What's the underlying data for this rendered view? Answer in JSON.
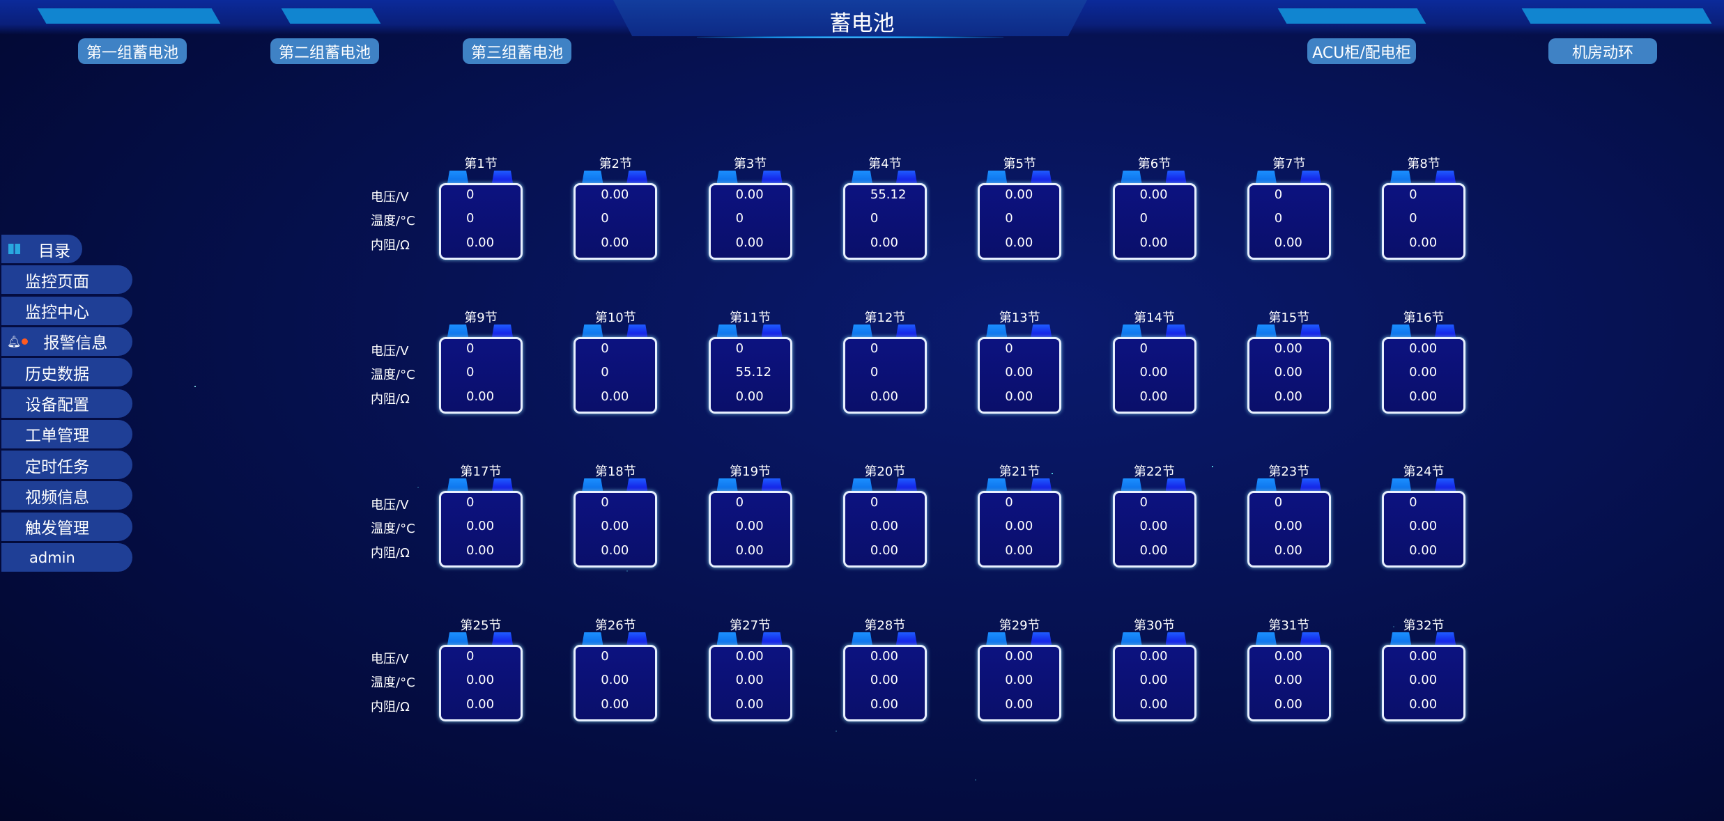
{
  "header": {
    "title": "蓄电池"
  },
  "nav": [
    {
      "label": "第一组蓄电池"
    },
    {
      "label": "第二组蓄电池"
    },
    {
      "label": "第三组蓄电池"
    },
    {
      "label": "ACU柜/配电柜"
    },
    {
      "label": "机房动环"
    }
  ],
  "sidebar": {
    "items": [
      {
        "label": "目录",
        "icon": "grid-icon"
      },
      {
        "label": "监控页面"
      },
      {
        "label": "监控中心"
      },
      {
        "label": "报警信息",
        "icon": "bell-icon",
        "badge_color": "#ff5a1f"
      },
      {
        "label": "历史数据"
      },
      {
        "label": "设备配置"
      },
      {
        "label": "工单管理"
      },
      {
        "label": "定时任务"
      },
      {
        "label": "视频信息"
      },
      {
        "label": "触发管理"
      },
      {
        "label": "admin"
      }
    ]
  },
  "labels": {
    "voltage": "电压/V",
    "temperature": "温度/°C",
    "resistance": "内阻/Ω"
  },
  "cells": [
    {
      "name": "第1节",
      "v": "0",
      "t": "0",
      "r": "0.00"
    },
    {
      "name": "第2节",
      "v": "0.00",
      "t": "0",
      "r": "0.00"
    },
    {
      "name": "第3节",
      "v": "0.00",
      "t": "0",
      "r": "0.00"
    },
    {
      "name": "第4节",
      "v": "55.12",
      "t": "0",
      "r": "0.00"
    },
    {
      "name": "第5节",
      "v": "0.00",
      "t": "0",
      "r": "0.00"
    },
    {
      "name": "第6节",
      "v": "0.00",
      "t": "0",
      "r": "0.00"
    },
    {
      "name": "第7节",
      "v": "0",
      "t": "0",
      "r": "0.00"
    },
    {
      "name": "第8节",
      "v": "0",
      "t": "0",
      "r": "0.00"
    },
    {
      "name": "第9节",
      "v": "0",
      "t": "0",
      "r": "0.00"
    },
    {
      "name": "第10节",
      "v": "0",
      "t": "0",
      "r": "0.00"
    },
    {
      "name": "第11节",
      "v": "0",
      "t": "55.12",
      "r": "0.00"
    },
    {
      "name": "第12节",
      "v": "0",
      "t": "0",
      "r": "0.00"
    },
    {
      "name": "第13节",
      "v": "0",
      "t": "0.00",
      "r": "0.00"
    },
    {
      "name": "第14节",
      "v": "0",
      "t": "0.00",
      "r": "0.00"
    },
    {
      "name": "第15节",
      "v": "0.00",
      "t": "0.00",
      "r": "0.00"
    },
    {
      "name": "第16节",
      "v": "0.00",
      "t": "0.00",
      "r": "0.00"
    },
    {
      "name": "第17节",
      "v": "0",
      "t": "0.00",
      "r": "0.00"
    },
    {
      "name": "第18节",
      "v": "0",
      "t": "0.00",
      "r": "0.00"
    },
    {
      "name": "第19节",
      "v": "0",
      "t": "0.00",
      "r": "0.00"
    },
    {
      "name": "第20节",
      "v": "0",
      "t": "0.00",
      "r": "0.00"
    },
    {
      "name": "第21节",
      "v": "0",
      "t": "0.00",
      "r": "0.00"
    },
    {
      "name": "第22节",
      "v": "0",
      "t": "0.00",
      "r": "0.00"
    },
    {
      "name": "第23节",
      "v": "0",
      "t": "0.00",
      "r": "0.00"
    },
    {
      "name": "第24节",
      "v": "0",
      "t": "0.00",
      "r": "0.00"
    },
    {
      "name": "第25节",
      "v": "0",
      "t": "0.00",
      "r": "0.00"
    },
    {
      "name": "第26节",
      "v": "0",
      "t": "0.00",
      "r": "0.00"
    },
    {
      "name": "第27节",
      "v": "0.00",
      "t": "0.00",
      "r": "0.00"
    },
    {
      "name": "第28节",
      "v": "0.00",
      "t": "0.00",
      "r": "0.00"
    },
    {
      "name": "第29节",
      "v": "0.00",
      "t": "0.00",
      "r": "0.00"
    },
    {
      "name": "第30节",
      "v": "0.00",
      "t": "0.00",
      "r": "0.00"
    },
    {
      "name": "第31节",
      "v": "0.00",
      "t": "0.00",
      "r": "0.00"
    },
    {
      "name": "第32节",
      "v": "0.00",
      "t": "0.00",
      "r": "0.00"
    }
  ]
}
